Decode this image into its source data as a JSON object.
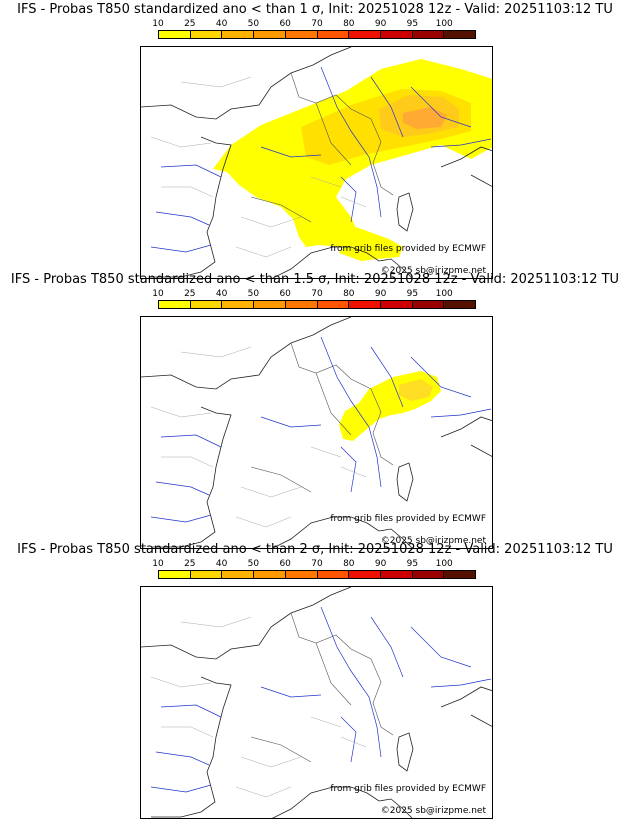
{
  "colorbar": {
    "tick_labels": [
      "10",
      "25",
      "40",
      "50",
      "60",
      "70",
      "80",
      "90",
      "95",
      "100"
    ],
    "colors": [
      "#ffff00",
      "#ffd700",
      "#ffb300",
      "#ff9900",
      "#ff7700",
      "#ff5500",
      "#ee1100",
      "#cc0000",
      "#990000",
      "#551100"
    ]
  },
  "panels": [
    {
      "title": "IFS - Probas T850  standardized ano < than 1 σ, Init: 20251028 12z - Valid: 20251103:12 TU",
      "credit": "from grib files provided by ECMWF",
      "copyright": "©2025 sb@irizpme.net"
    },
    {
      "title": "IFS - Probas T850  standardized ano < than 1.5 σ, Init: 20251028 12z - Valid: 20251103:12 TU",
      "credit": "from grib files provided by ECMWF",
      "copyright": "©2025 sb@irizpme.net"
    },
    {
      "title": "IFS - Probas T850  standardized ano < than 2 σ, Init: 20251028 12z - Valid: 20251103:12 TU",
      "credit": "from grib files provided by ECMWF",
      "copyright": "©2025 sb@irizpme.net"
    }
  ]
}
